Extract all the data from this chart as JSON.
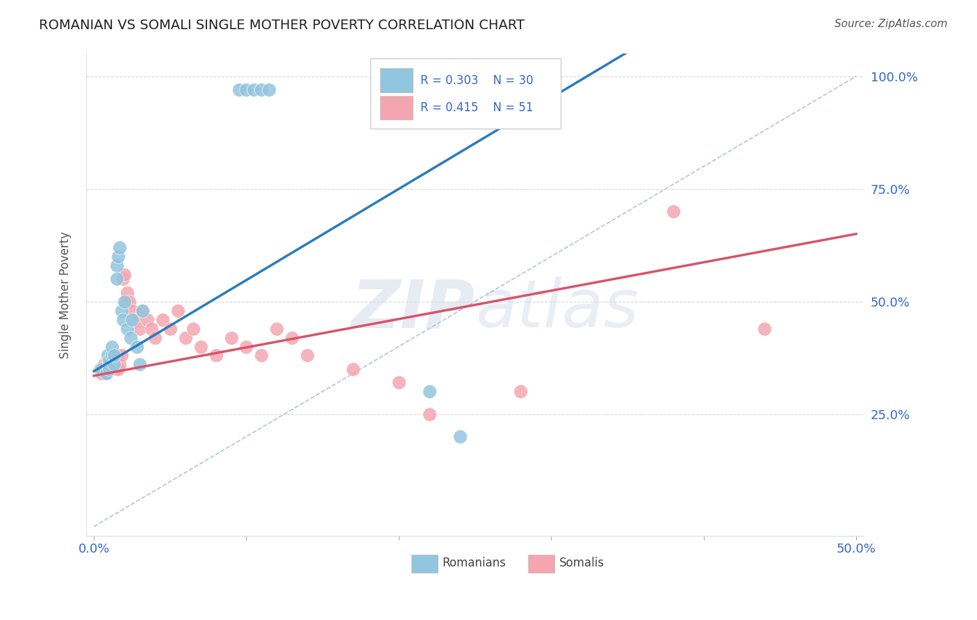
{
  "title": "ROMANIAN VS SOMALI SINGLE MOTHER POVERTY CORRELATION CHART",
  "source": "Source: ZipAtlas.com",
  "ylabel": "Single Mother Poverty",
  "xlim": [
    0.0,
    0.5
  ],
  "ylim": [
    0.0,
    1.05
  ],
  "legend_r1": "R = 0.303",
  "legend_n1": "N = 30",
  "legend_r2": "R = 0.415",
  "legend_n2": "N = 51",
  "romanian_color": "#92c5de",
  "somali_color": "#f4a6b0",
  "regression_color_romanian": "#2b7bba",
  "regression_color_somali": "#d9536a",
  "diagonal_color": "#b0c4de",
  "watermark_zip": "ZIP",
  "watermark_atlas": "atlas",
  "romanian_x": [
    0.005,
    0.008,
    0.009,
    0.01,
    0.01,
    0.01,
    0.012,
    0.012,
    0.013,
    0.013,
    0.015,
    0.015,
    0.016,
    0.017,
    0.018,
    0.019,
    0.02,
    0.022,
    0.024,
    0.025,
    0.028,
    0.03,
    0.032,
    0.095,
    0.1,
    0.105,
    0.11,
    0.115,
    0.22,
    0.24
  ],
  "romanian_y": [
    0.35,
    0.34,
    0.38,
    0.36,
    0.37,
    0.35,
    0.38,
    0.4,
    0.36,
    0.38,
    0.58,
    0.55,
    0.6,
    0.62,
    0.48,
    0.46,
    0.5,
    0.44,
    0.42,
    0.46,
    0.4,
    0.36,
    0.48,
    0.97,
    0.97,
    0.97,
    0.97,
    0.97,
    0.3,
    0.2
  ],
  "somali_x": [
    0.004,
    0.005,
    0.006,
    0.007,
    0.008,
    0.009,
    0.01,
    0.01,
    0.011,
    0.011,
    0.012,
    0.012,
    0.013,
    0.013,
    0.014,
    0.015,
    0.015,
    0.016,
    0.017,
    0.018,
    0.019,
    0.02,
    0.021,
    0.022,
    0.023,
    0.025,
    0.027,
    0.03,
    0.032,
    0.035,
    0.038,
    0.04,
    0.045,
    0.05,
    0.055,
    0.06,
    0.065,
    0.07,
    0.08,
    0.09,
    0.1,
    0.11,
    0.12,
    0.13,
    0.14,
    0.17,
    0.2,
    0.22,
    0.28,
    0.38,
    0.44
  ],
  "somali_y": [
    0.35,
    0.34,
    0.35,
    0.36,
    0.34,
    0.37,
    0.36,
    0.37,
    0.35,
    0.38,
    0.35,
    0.37,
    0.36,
    0.38,
    0.35,
    0.37,
    0.38,
    0.35,
    0.36,
    0.38,
    0.55,
    0.56,
    0.5,
    0.52,
    0.5,
    0.48,
    0.46,
    0.44,
    0.48,
    0.46,
    0.44,
    0.42,
    0.46,
    0.44,
    0.48,
    0.42,
    0.44,
    0.4,
    0.38,
    0.42,
    0.4,
    0.38,
    0.44,
    0.42,
    0.38,
    0.35,
    0.32,
    0.25,
    0.3,
    0.7,
    0.44
  ]
}
